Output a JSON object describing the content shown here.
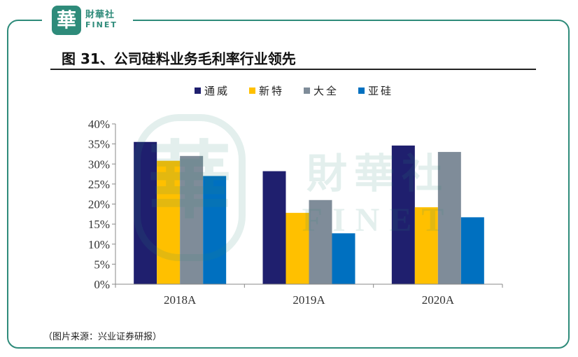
{
  "brand": {
    "seal": "華",
    "name_cn": "財華社",
    "name_en": "FINET"
  },
  "figure_title": "图 31、公司硅料业务毛利率行业领先",
  "source_note": "（图片来源：兴业证券研报）",
  "colors": {
    "frame": "#2e8b7a"
  },
  "chart_data": {
    "type": "bar",
    "categories": [
      "2018A",
      "2019A",
      "2020A"
    ],
    "series": [
      {
        "name": "通威",
        "color": "#1f1f6e",
        "values": [
          35.5,
          28.2,
          34.6
        ]
      },
      {
        "name": "新特",
        "color": "#ffc000",
        "values": [
          30.8,
          17.8,
          19.2
        ]
      },
      {
        "name": "大全",
        "color": "#7f8c99",
        "values": [
          32.0,
          21.0,
          33.0
        ]
      },
      {
        "name": "亚硅",
        "color": "#0070c0",
        "values": [
          27.0,
          12.7,
          16.7
        ]
      }
    ],
    "yticks": [
      "0%",
      "5%",
      "10%",
      "15%",
      "20%",
      "25%",
      "30%",
      "35%",
      "40%"
    ],
    "ylim": [
      0,
      40
    ],
    "legend_position": "top",
    "grid": false
  }
}
